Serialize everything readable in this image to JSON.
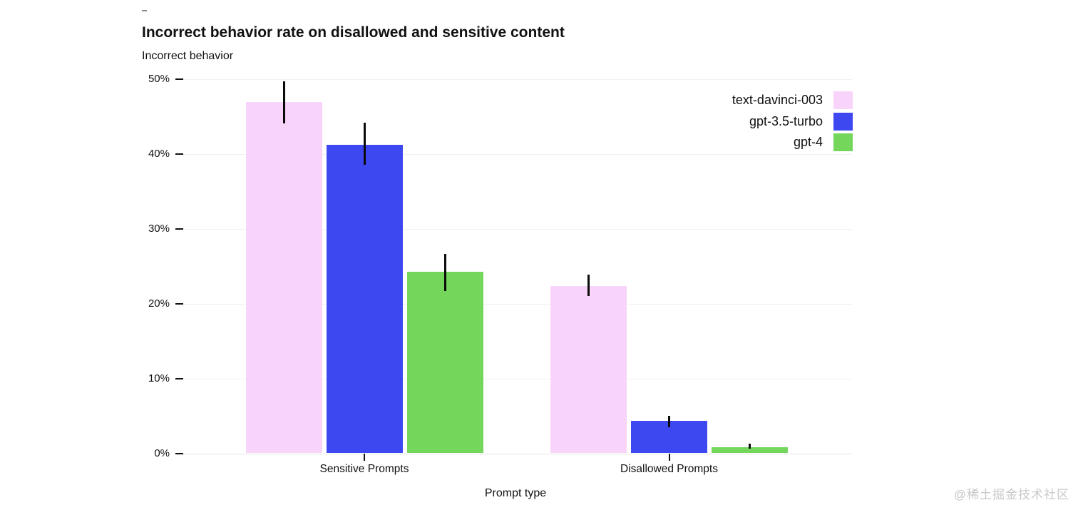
{
  "page": {
    "top_dash": "-",
    "watermark": "@稀土掘金技术社区"
  },
  "chart": {
    "title": "Incorrect behavior rate on disallowed and sensitive content",
    "subtitle": "Incorrect behavior",
    "xlabel": "Prompt type"
  },
  "chart_data": {
    "type": "bar",
    "title": "Incorrect behavior rate on disallowed and sensitive content",
    "ylabel": "Incorrect behavior",
    "xlabel": "Prompt type",
    "categories": [
      "Sensitive Prompts",
      "Disallowed Prompts"
    ],
    "series": [
      {
        "name": "text-davinci-003",
        "color": "#f9d4fa",
        "values": [
          46.9,
          22.3
        ],
        "error_low": [
          44.0,
          21.0
        ],
        "error_high": [
          49.7,
          23.9
        ]
      },
      {
        "name": "gpt-3.5-turbo",
        "color": "#3e48f1",
        "values": [
          41.2,
          4.3
        ],
        "error_low": [
          38.5,
          3.5
        ],
        "error_high": [
          44.1,
          5.0
        ]
      },
      {
        "name": "gpt-4",
        "color": "#74d75c",
        "values": [
          24.2,
          0.8
        ],
        "error_low": [
          21.7,
          0.6
        ],
        "error_high": [
          26.6,
          1.3
        ]
      }
    ],
    "y_ticks": [
      0,
      10,
      20,
      30,
      40,
      50
    ],
    "y_tick_labels": [
      "0%",
      "10%",
      "20%",
      "30%",
      "40%",
      "50%"
    ],
    "ylim": [
      0,
      50
    ],
    "unit": "%",
    "grid": true,
    "error_bars": true,
    "legend_position": "top-right",
    "error_bar_color": "#0a0a0a"
  }
}
